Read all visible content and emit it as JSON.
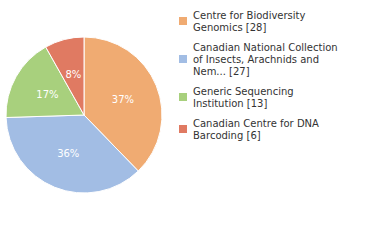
{
  "chart_data": {
    "type": "pie",
    "categories": [
      "Centre for Biodiversity Genomics [28]",
      "Canadian National Collection of Insects, Arachnids and Nem... [27]",
      "Generic Sequencing Institution [13]",
      "Canadian Centre for DNA Barcoding [6]"
    ],
    "values": [
      37,
      36,
      17,
      8
    ],
    "value_labels": [
      "37%",
      "36%",
      "17%",
      "8%"
    ],
    "colors": [
      "#f0ab72",
      "#a2bde4",
      "#a8d07d",
      "#e07a62"
    ],
    "data_labels": true,
    "legend": "right"
  }
}
